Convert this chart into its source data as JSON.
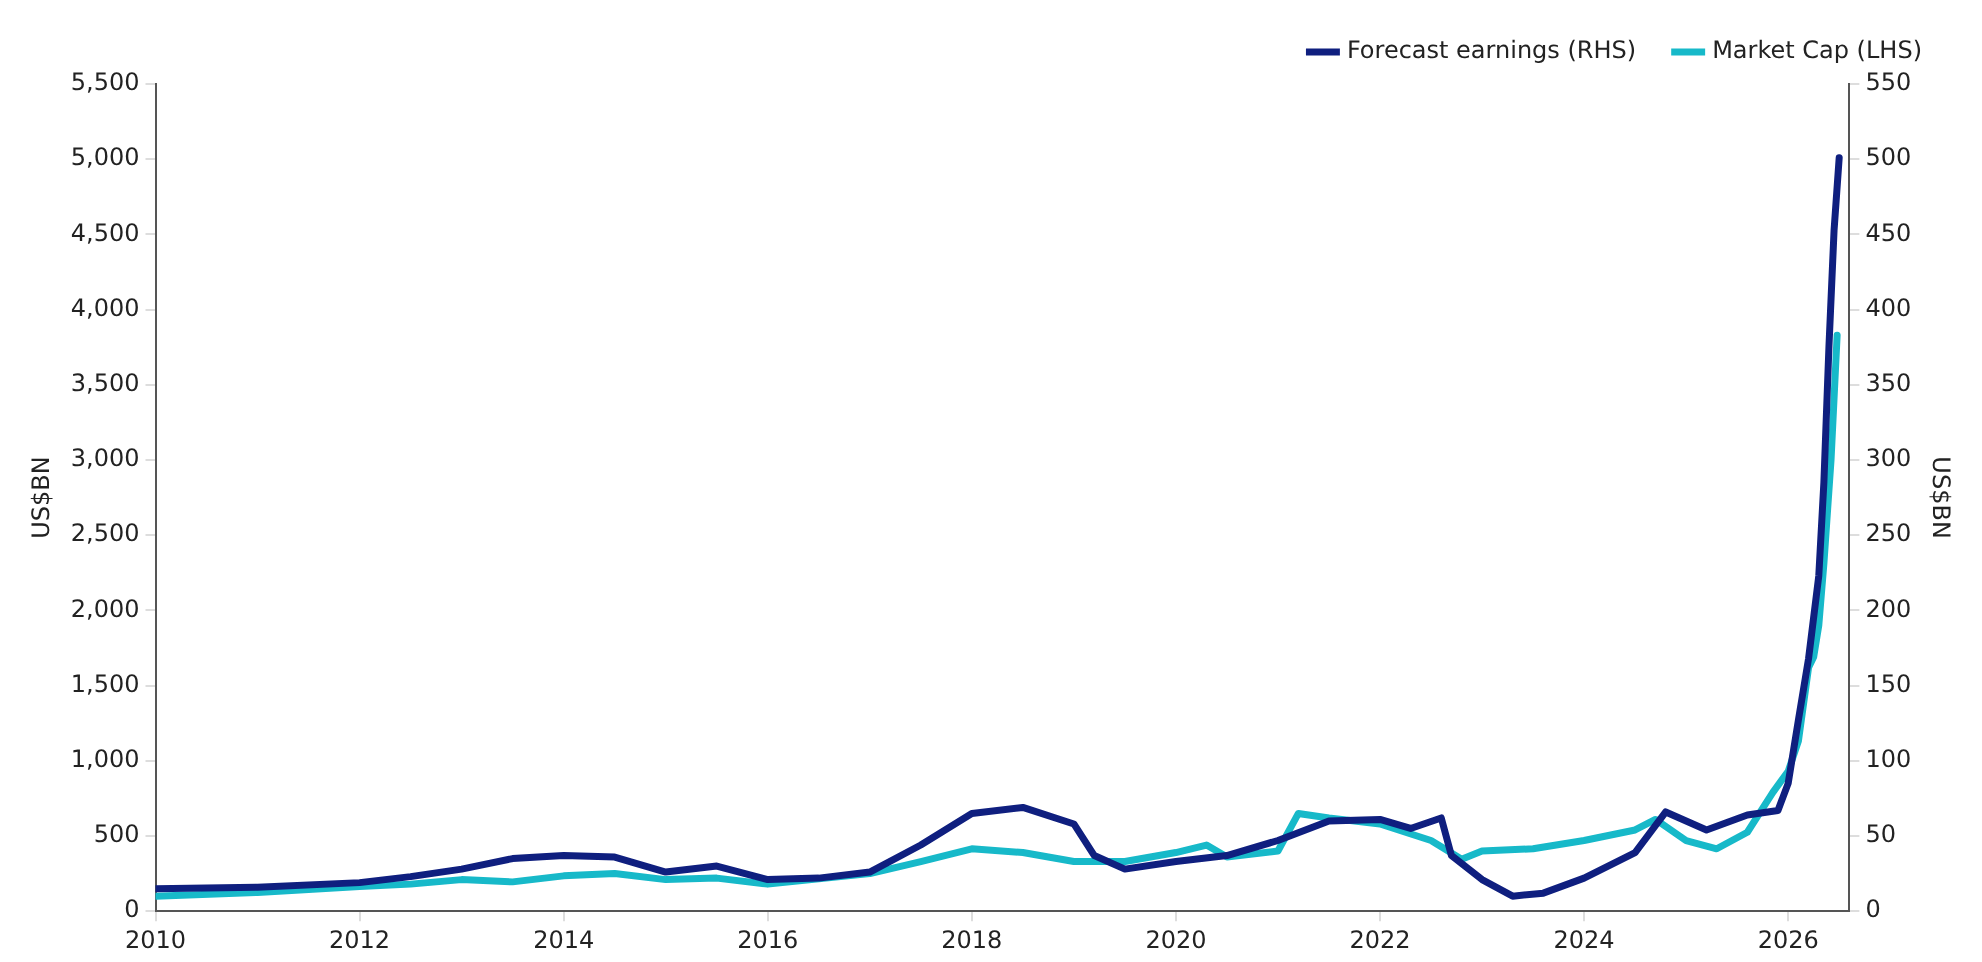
{
  "chart_data": {
    "type": "line",
    "ylabel": "US$BN",
    "y2label": "US$BN",
    "legend": "top right",
    "marker": "none",
    "line_style": "solid",
    "grid": false,
    "xlim": [
      2010,
      2026.6
    ],
    "xticks": [
      2010,
      2012,
      2014,
      2016,
      2018,
      2020,
      2022,
      2024,
      2026
    ],
    "ylim": [
      0,
      5500
    ],
    "yticks": [
      0,
      500,
      {
        "value": 1000,
        "label": "1,000"
      },
      {
        "value": 1500,
        "label": "1,500"
      },
      {
        "value": 2000,
        "label": "2,000"
      },
      {
        "value": 2500,
        "label": "2,500"
      },
      {
        "value": 3000,
        "label": "3,000"
      },
      {
        "value": 3500,
        "label": "3,500"
      },
      {
        "value": 4000,
        "label": "4,000"
      },
      {
        "value": 4500,
        "label": "4,500"
      },
      {
        "value": 5000,
        "label": "5,000"
      },
      {
        "value": 5500,
        "label": "5,500"
      }
    ],
    "y2lim": [
      0,
      550
    ],
    "y2ticks": [
      0,
      50,
      100,
      150,
      200,
      250,
      300,
      350,
      400,
      450,
      500,
      550
    ],
    "series": [
      {
        "name": "Forecast earnings (RHS)",
        "color": "#0f1f7f",
        "axis": "y2",
        "x": [
          2010,
          2011,
          2012,
          2012.5,
          2013,
          2013.5,
          2014,
          2014.5,
          2015,
          2015.5,
          2016,
          2016.5,
          2017,
          2017.5,
          2018,
          2018.5,
          2019,
          2019.2,
          2019.5,
          2020,
          2020.5,
          2021,
          2021.5,
          2022,
          2022.3,
          2022.6,
          2022.7,
          2023,
          2023.3,
          2023.6,
          2024,
          2024.5,
          2024.8,
          2025.2,
          2025.6,
          2025.9,
          2026,
          2026.1,
          2026.2,
          2026.3,
          2026.35,
          2026.4,
          2026.45,
          2026.5
        ],
        "values": [
          15,
          16,
          19,
          23,
          28,
          35,
          37,
          36,
          26,
          30,
          21,
          22,
          26,
          44,
          65,
          69,
          58,
          37,
          28,
          33,
          37,
          47,
          60,
          61,
          55,
          62,
          37,
          21,
          10,
          12,
          22,
          39,
          66,
          54,
          64,
          67,
          85,
          127,
          168,
          223,
          285,
          376,
          453,
          501
        ]
      },
      {
        "name": "Market Cap (LHS)",
        "color": "#17b9c9",
        "axis": "y",
        "x": [
          2010,
          2011,
          2012,
          2012.5,
          2013,
          2013.5,
          2014,
          2014.5,
          2015,
          2015.5,
          2016,
          2017,
          2017.5,
          2018,
          2018.5,
          2019,
          2019.5,
          2020,
          2020.3,
          2020.5,
          2021,
          2021.2,
          2021.5,
          2022,
          2022.5,
          2022.8,
          2023,
          2023.5,
          2024,
          2024.5,
          2024.7,
          2025,
          2025.3,
          2025.6,
          2025.85,
          2026,
          2026.1,
          2026.2,
          2026.25,
          2026.3,
          2026.35,
          2026.42,
          2026.48
        ],
        "values": [
          100,
          125,
          165,
          180,
          210,
          195,
          235,
          250,
          210,
          220,
          180,
          250,
          330,
          415,
          390,
          330,
          330,
          390,
          440,
          360,
          400,
          650,
          620,
          580,
          470,
          345,
          400,
          415,
          470,
          540,
          610,
          470,
          415,
          525,
          790,
          930,
          1130,
          1620,
          1690,
          1900,
          2310,
          3000,
          3830
        ]
      }
    ]
  }
}
